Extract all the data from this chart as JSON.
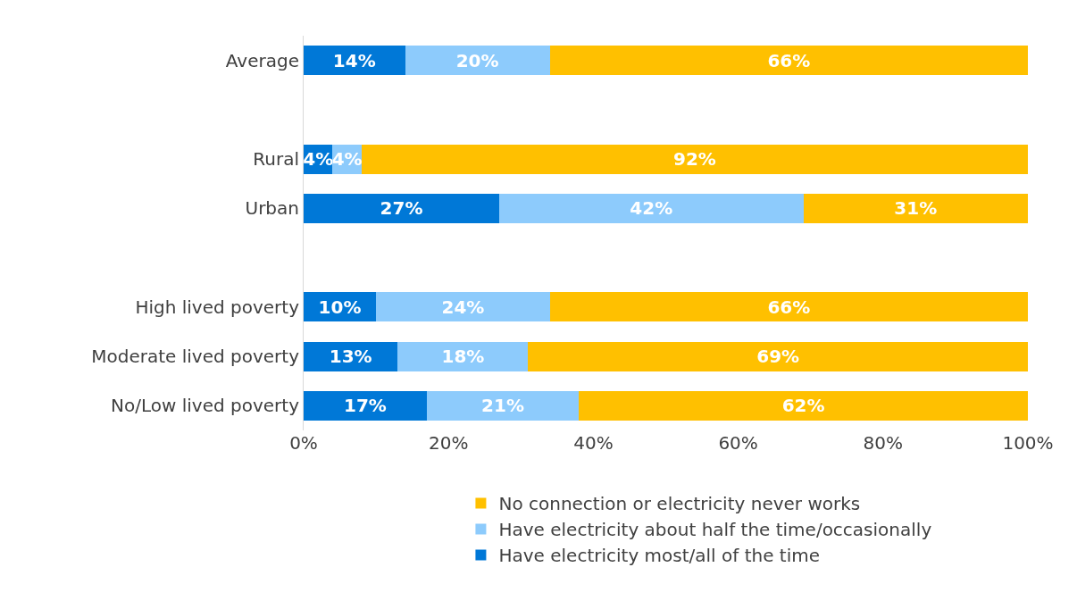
{
  "chart_data": {
    "type": "bar",
    "orientation": "horizontal",
    "stacked": true,
    "categories": [
      "Average",
      null,
      "Rural",
      "Urban",
      null,
      "High lived poverty",
      "Moderate lived poverty",
      "No/Low lived poverty"
    ],
    "series": [
      {
        "name": "Have electricity most/all of the time",
        "color": "#0078d7",
        "values": [
          14,
          null,
          4,
          27,
          null,
          10,
          13,
          17
        ],
        "value_labels": [
          "14%",
          null,
          "4%",
          "27%",
          null,
          "10%",
          "13%",
          "17%"
        ]
      },
      {
        "name": "Have electricity about half the time/occasionally",
        "color": "#8dcbfc",
        "values": [
          20,
          null,
          4,
          42,
          null,
          24,
          18,
          21
        ],
        "value_labels": [
          "20%",
          null,
          "4%",
          "42%",
          null,
          "24%",
          "18%",
          "21%"
        ]
      },
      {
        "name": "No connection or electricity never works",
        "color": "#ffc000",
        "values": [
          66,
          null,
          92,
          31,
          null,
          66,
          69,
          62
        ],
        "value_labels": [
          "66%",
          null,
          "92%",
          "31%",
          null,
          "66%",
          "69%",
          "62%"
        ]
      }
    ],
    "xlim": [
      0,
      100
    ],
    "xticks": [
      {
        "value": 0,
        "label": "0%"
      },
      {
        "value": 20,
        "label": "20%"
      },
      {
        "value": 40,
        "label": "40%"
      },
      {
        "value": 60,
        "label": "60%"
      },
      {
        "value": 80,
        "label": "80%"
      },
      {
        "value": 100,
        "label": "100%"
      }
    ],
    "grid": false,
    "legend": "bottom"
  }
}
